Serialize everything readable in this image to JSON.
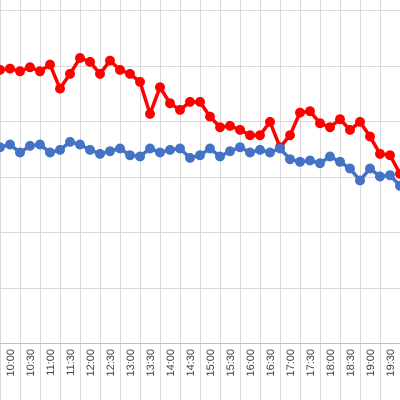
{
  "chart_data": {
    "type": "line",
    "x": [
      "10:00",
      "10:30",
      "11:00",
      "11:30",
      "12:00",
      "12:30",
      "13:00",
      "13:30",
      "14:00",
      "14:30",
      "15:00",
      "15:30",
      "16:00",
      "16:30",
      "17:00",
      "17:30",
      "18:00",
      "18:30",
      "19:00",
      "19:30"
    ],
    "xlim": [
      9.75,
      19.75
    ],
    "y_gridlines": 7,
    "grid": true,
    "legend": "none",
    "series": [
      {
        "color": "#ff0000",
        "x": [
          9.75,
          10.0,
          10.25,
          10.5,
          10.75,
          11.0,
          11.25,
          11.5,
          11.75,
          12.0,
          12.25,
          12.5,
          12.75,
          13.0,
          13.25,
          13.5,
          13.75,
          14.0,
          14.25,
          14.5,
          14.75,
          15.0,
          15.25,
          15.5,
          15.75,
          16.0,
          16.25,
          16.5,
          16.75,
          17.0,
          17.25,
          17.5,
          17.75,
          18.0,
          18.25,
          18.5,
          18.75,
          19.0,
          19.25,
          19.5,
          19.75
        ],
        "values": [
          50.5,
          50.6,
          50.4,
          50.7,
          50.4,
          50.9,
          49.1,
          50.2,
          51.4,
          51.1,
          50.2,
          51.2,
          50.5,
          50.2,
          49.6,
          47.2,
          49.2,
          48.0,
          47.5,
          48.1,
          48.1,
          47.0,
          46.2,
          46.3,
          46.0,
          45.6,
          45.6,
          46.6,
          44.7,
          45.6,
          47.3,
          47.4,
          46.5,
          46.2,
          46.8,
          46.0,
          46.6,
          45.5,
          44.2,
          44.1,
          42.7
        ]
      },
      {
        "color": "#4472c4",
        "x": [
          9.75,
          10.0,
          10.25,
          10.5,
          10.75,
          11.0,
          11.25,
          11.5,
          11.75,
          12.0,
          12.25,
          12.5,
          12.75,
          13.0,
          13.25,
          13.5,
          13.75,
          14.0,
          14.25,
          14.5,
          14.75,
          15.0,
          15.25,
          15.5,
          15.75,
          16.0,
          16.25,
          16.5,
          16.75,
          17.0,
          17.25,
          17.5,
          17.75,
          18.0,
          18.25,
          18.5,
          18.75,
          19.0,
          19.25,
          19.5,
          19.75
        ],
        "values": [
          44.7,
          44.9,
          44.3,
          44.8,
          44.9,
          44.3,
          44.5,
          45.1,
          44.9,
          44.5,
          44.2,
          44.4,
          44.6,
          44.1,
          44.0,
          44.6,
          44.3,
          44.5,
          44.6,
          43.9,
          44.1,
          44.6,
          44.0,
          44.4,
          44.7,
          44.3,
          44.5,
          44.3,
          44.6,
          43.8,
          43.6,
          43.7,
          43.5,
          44.0,
          43.6,
          43.1,
          42.2,
          43.1,
          42.5,
          42.6,
          41.8
        ]
      }
    ]
  }
}
